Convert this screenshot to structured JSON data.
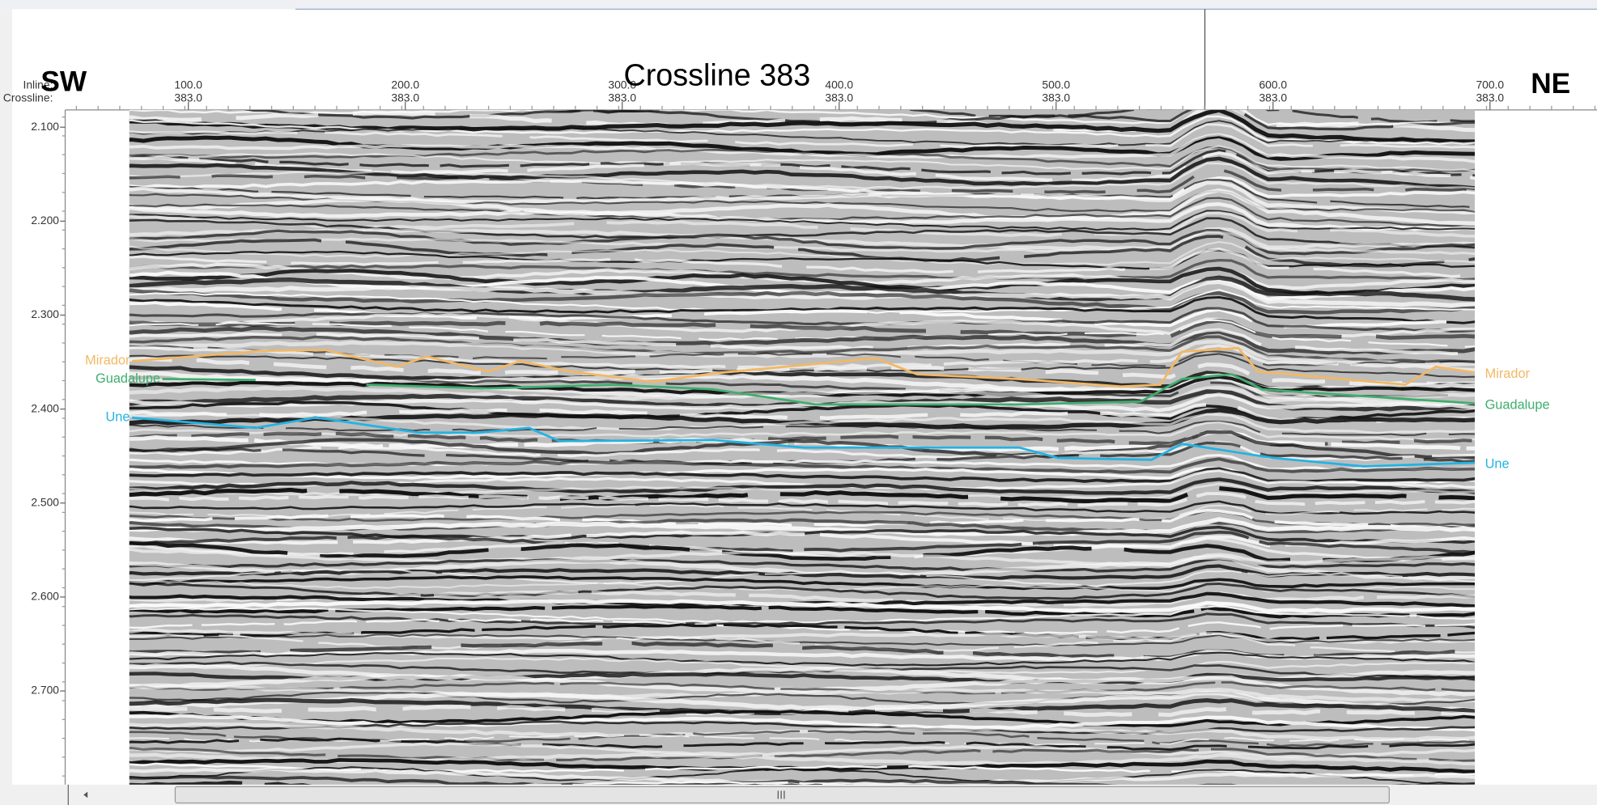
{
  "chart_data": {
    "type": "line",
    "title": "Crossline 383",
    "left_direction": "SW",
    "right_direction": "NE",
    "header_labels": [
      "Inline:",
      "Crossline:"
    ],
    "xticks": [
      {
        "value": 100,
        "label": "100.0"
      },
      {
        "value": 200,
        "label": "200.0"
      },
      {
        "value": 300,
        "label": "300.0"
      },
      {
        "value": 400,
        "label": "400.0"
      },
      {
        "value": 500,
        "label": "500.0"
      },
      {
        "value": 600,
        "label": "600.0"
      },
      {
        "value": 700,
        "label": "700.0"
      }
    ],
    "crossline_labels": [
      "383.0",
      "383.0",
      "383.0",
      "383.0",
      "383.0",
      "383.0",
      "383.0"
    ],
    "xlim": [
      72.8,
      693.0
    ],
    "ylim": [
      2.0816,
      2.7997
    ],
    "yticks": [
      {
        "value": 2.1,
        "label": "2.100"
      },
      {
        "value": 2.2,
        "label": "2.200"
      },
      {
        "value": 2.3,
        "label": "2.300"
      },
      {
        "value": 2.4,
        "label": "2.400"
      },
      {
        "value": 2.5,
        "label": "2.500"
      },
      {
        "value": 2.6,
        "label": "2.600"
      },
      {
        "value": 2.7,
        "label": "2.700"
      }
    ],
    "series": [
      {
        "name": "Mirador",
        "color": "#f2b865",
        "x": [
          74,
          135,
          163,
          196,
          210,
          238,
          253,
          276,
          314,
          342,
          417,
          436,
          483,
          530,
          548,
          558,
          584,
          593,
          661,
          675,
          693
        ],
        "values": [
          2.349,
          2.338,
          2.337,
          2.355,
          2.344,
          2.36,
          2.349,
          2.36,
          2.371,
          2.362,
          2.346,
          2.363,
          2.368,
          2.376,
          2.374,
          2.339,
          2.335,
          2.36,
          2.374,
          2.355,
          2.361
        ]
      },
      {
        "name": "Guadalupe",
        "color": "#3fae6e",
        "x": [
          88,
          131,
          null,
          182,
          238,
          295,
          342,
          389,
          483,
          539,
          558,
          581,
          595,
          647,
          693
        ],
        "values": [
          2.368,
          2.369,
          null,
          2.374,
          2.378,
          2.374,
          2.379,
          2.395,
          2.395,
          2.392,
          2.368,
          2.363,
          2.379,
          2.387,
          2.394
        ]
      },
      {
        "name": "Une",
        "color": "#22b3e3",
        "x": [
          74,
          131,
          159,
          206,
          234,
          257,
          271,
          342,
          384,
          483,
          501,
          544,
          558,
          600,
          642,
          693
        ],
        "values": [
          2.409,
          2.42,
          2.409,
          2.425,
          2.425,
          2.42,
          2.434,
          2.433,
          2.441,
          2.441,
          2.452,
          2.454,
          2.437,
          2.452,
          2.461,
          2.457
        ]
      }
    ]
  }
}
